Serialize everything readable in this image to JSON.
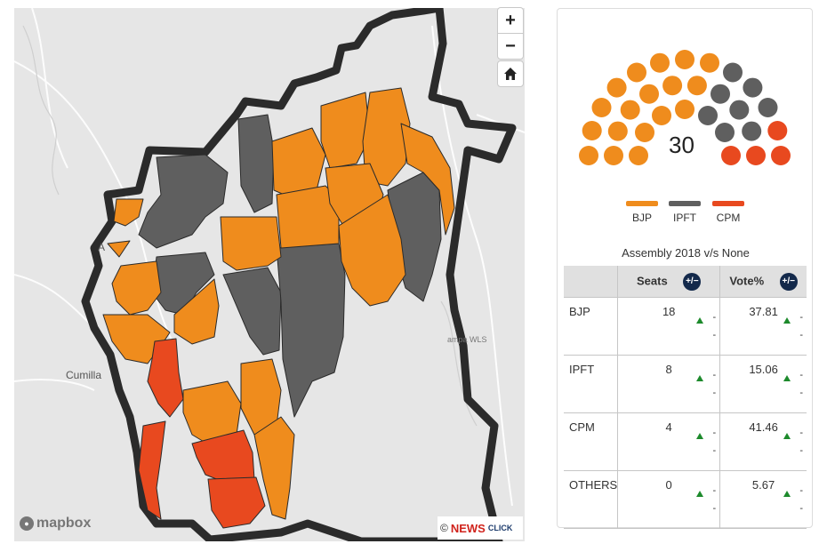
{
  "map": {
    "controls": {
      "zoom_in": "+",
      "zoom_out": "−",
      "home": "home-icon"
    },
    "place_labels": {
      "agartala": "A",
      "cumilla": "Cumilla",
      "wls": "ampa WLS"
    },
    "attribution": {
      "mapbox": "mapbox",
      "copyright": "©",
      "brand_news": "NEWS",
      "brand_click": "CLICK"
    },
    "colors": {
      "BJP": "#ef8c1d",
      "IPFT": "#5f5f5f",
      "CPM": "#e8491f",
      "border": "#2b2b2b",
      "land": "#e6e6e6"
    }
  },
  "hemicycle": {
    "total": "30",
    "seats": {
      "BJP": 18,
      "IPFT": 8,
      "CPM": 4
    }
  },
  "legend": [
    {
      "label": "BJP",
      "color": "#ef8c1d"
    },
    {
      "label": "IPFT",
      "color": "#5f5f5f"
    },
    {
      "label": "CPM",
      "color": "#e8491f"
    }
  ],
  "table": {
    "title": "Assembly 2018 v/s None",
    "headers": {
      "seats": "Seats",
      "vote": "Vote%",
      "toggle": "+/−"
    },
    "rows": [
      {
        "party": "BJP",
        "seats": "18",
        "seats_delta": "-",
        "seats_delta2": "-",
        "vote": "37.81",
        "vote_delta": "-",
        "vote_delta2": "-"
      },
      {
        "party": "IPFT",
        "seats": "8",
        "seats_delta": "-",
        "seats_delta2": "-",
        "vote": "15.06",
        "vote_delta": "-",
        "vote_delta2": "-"
      },
      {
        "party": "CPM",
        "seats": "4",
        "seats_delta": "-",
        "seats_delta2": "-",
        "vote": "41.46",
        "vote_delta": "-",
        "vote_delta2": "-"
      },
      {
        "party": "OTHERS",
        "seats": "0",
        "seats_delta": "-",
        "seats_delta2": "-",
        "vote": "5.67",
        "vote_delta": "-",
        "vote_delta2": "-"
      }
    ]
  }
}
